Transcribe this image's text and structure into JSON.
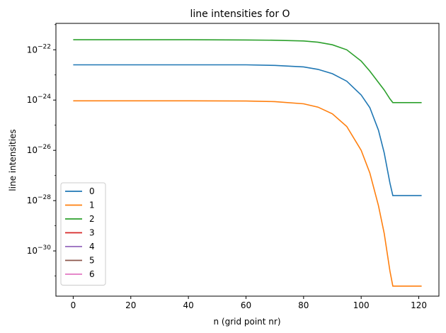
{
  "chart_data": {
    "type": "line",
    "title": "line intensities for O",
    "xlabel": "n (grid point nr)",
    "ylabel": "line intensities",
    "xlim": [
      -6,
      127
    ],
    "ylim_log10": [
      -31.8,
      -20.95
    ],
    "yscale": "log",
    "x_ticks": [
      0,
      20,
      40,
      60,
      80,
      100,
      120
    ],
    "y_ticks": [
      {
        "exp": -22,
        "base": "10",
        "power": "−22"
      },
      {
        "exp": -24,
        "base": "10",
        "power": "−24"
      },
      {
        "exp": -26,
        "base": "10",
        "power": "−26"
      },
      {
        "exp": -28,
        "base": "10",
        "power": "−28"
      },
      {
        "exp": -30,
        "base": "10",
        "power": "−30"
      }
    ],
    "grid": false,
    "legend_position": "lower left",
    "series": [
      {
        "name": "0",
        "color": "#1f77b4",
        "x": [
          0,
          20,
          40,
          60,
          70,
          80,
          85,
          90,
          95,
          100,
          103,
          106,
          108,
          110,
          111,
          121
        ],
        "log10_y": [
          -22.6,
          -22.6,
          -22.6,
          -22.6,
          -22.62,
          -22.68,
          -22.78,
          -22.95,
          -23.25,
          -23.8,
          -24.3,
          -25.2,
          -26.1,
          -27.3,
          -27.8,
          -27.8
        ]
      },
      {
        "name": "1",
        "color": "#ff7f0e",
        "x": [
          0,
          20,
          40,
          60,
          70,
          80,
          85,
          90,
          95,
          100,
          103,
          106,
          108,
          110,
          111,
          121
        ],
        "log10_y": [
          -24.03,
          -24.03,
          -24.03,
          -24.04,
          -24.06,
          -24.15,
          -24.28,
          -24.55,
          -25.05,
          -26.0,
          -26.9,
          -28.2,
          -29.3,
          -30.8,
          -31.4,
          -31.4
        ]
      },
      {
        "name": "2",
        "color": "#2ca02c",
        "x": [
          0,
          20,
          40,
          60,
          70,
          80,
          85,
          90,
          95,
          100,
          103,
          106,
          108,
          110,
          111,
          121
        ],
        "log10_y": [
          -21.6,
          -21.6,
          -21.6,
          -21.61,
          -21.62,
          -21.65,
          -21.7,
          -21.8,
          -22.0,
          -22.45,
          -22.85,
          -23.3,
          -23.6,
          -23.95,
          -24.1,
          -24.1
        ]
      },
      {
        "name": "3",
        "color": "#d62728",
        "x": [],
        "log10_y": []
      },
      {
        "name": "4",
        "color": "#9467bd",
        "x": [],
        "log10_y": []
      },
      {
        "name": "5",
        "color": "#8c564b",
        "x": [],
        "log10_y": []
      },
      {
        "name": "6",
        "color": "#e377c2",
        "x": [],
        "log10_y": []
      }
    ]
  }
}
